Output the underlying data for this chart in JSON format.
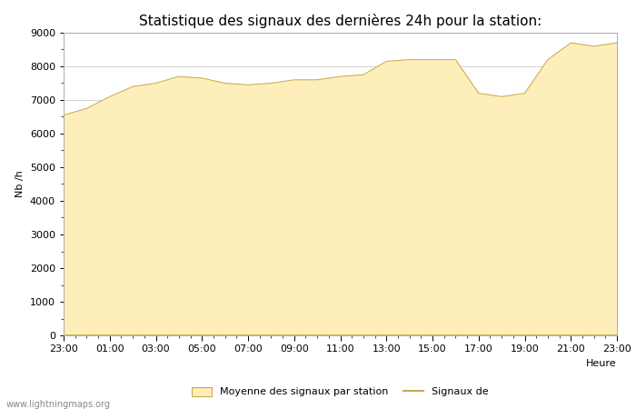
{
  "title": "Statistique des signaux des dernières 24h pour la station:",
  "xlabel": "Heure",
  "ylabel": "Nb /h",
  "fill_color": "#FDEEBA",
  "fill_edge_color": "#C8A850",
  "line_color": "#C8A850",
  "background_color": "#FFFFFF",
  "grid_color": "#CCCCCC",
  "ylim": [
    0,
    9000
  ],
  "yticks": [
    0,
    1000,
    2000,
    3000,
    4000,
    5000,
    6000,
    7000,
    8000,
    9000
  ],
  "xtick_labels": [
    "23:00",
    "01:00",
    "03:00",
    "05:00",
    "07:00",
    "09:00",
    "11:00",
    "13:00",
    "15:00",
    "17:00",
    "19:00",
    "21:00",
    "23:00"
  ],
  "watermark": "www.lightningmaps.org",
  "legend_fill_label": "Moyenne des signaux par station",
  "legend_line_label": "Signaux de",
  "x_hours": [
    0,
    1,
    2,
    3,
    4,
    5,
    6,
    7,
    8,
    9,
    10,
    11,
    12,
    13,
    14,
    15,
    16,
    17,
    18,
    19,
    20,
    21,
    22,
    23,
    24
  ],
  "mean_values": [
    6550,
    6750,
    7100,
    7400,
    7500,
    7700,
    7650,
    7500,
    7450,
    7500,
    7600,
    7600,
    7700,
    7750,
    8150,
    8200,
    8200,
    8200,
    7200,
    7100,
    7200,
    8200,
    8700,
    8600,
    8700
  ],
  "signal_values": [
    0,
    0,
    0,
    0,
    0,
    0,
    0,
    0,
    0,
    0,
    0,
    0,
    0,
    0,
    0,
    0,
    0,
    0,
    0,
    0,
    0,
    0,
    0,
    0,
    0
  ],
  "title_fontsize": 11,
  "label_fontsize": 8,
  "tick_fontsize": 8
}
